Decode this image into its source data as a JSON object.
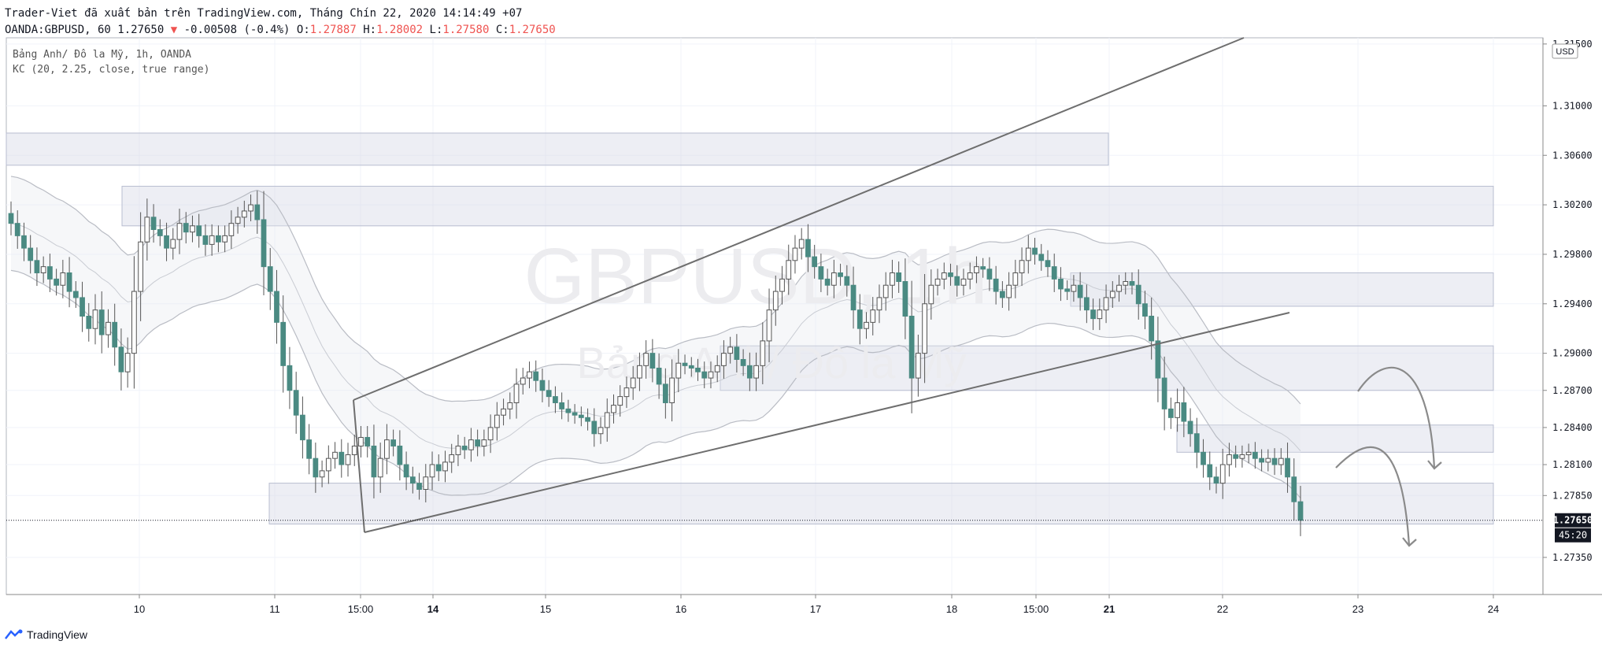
{
  "header": {
    "published_line": "Trader-Viet đã xuất bản trên TradingView.com, Tháng Chín 22, 2020 14:14:49 +07",
    "symbol_line": "OANDA:GBPUSD, 60 1.27650",
    "change": "-0.00508 (-0.4%)",
    "ohlc": {
      "o_label": "O:",
      "o": "1.27887",
      "h_label": "H:",
      "h": "1.28002",
      "l_label": "L:",
      "l": "1.27580",
      "c_label": "C:",
      "c": "1.27650"
    }
  },
  "legend": {
    "line1": "Bảng Anh/ Đô la Mỹ, 1h, OANDA",
    "line2": "KC (20, 2.25, close, true range)"
  },
  "watermark": {
    "symbol": "GBPUSD, 1h",
    "name": "Bảng Anh/ Đô la Mỹ"
  },
  "footer": {
    "brand": "TradingView"
  },
  "colors": {
    "up": "#26a69a",
    "down": "#4a8a82",
    "bull_body": "#ffffff",
    "wick": "#555555",
    "zone": "#d6dae6",
    "line": "#6e6e6e",
    "price_bg": "#131722"
  },
  "chart_data": {
    "type": "candlestick",
    "currency_label": "USD",
    "ylim": [
      1.2705,
      1.3155
    ],
    "y_ticks": [
      "1.31500",
      "1.31000",
      "1.30600",
      "1.30200",
      "1.29800",
      "1.29400",
      "1.29000",
      "1.28700",
      "1.28400",
      "1.28100",
      "1.27850",
      "1.27350"
    ],
    "x_ticks": [
      {
        "label": "10",
        "bold": false
      },
      {
        "label": "11",
        "bold": false
      },
      {
        "label": "15:00",
        "bold": false
      },
      {
        "label": "14",
        "bold": true
      },
      {
        "label": "15",
        "bold": false
      },
      {
        "label": "16",
        "bold": false
      },
      {
        "label": "17",
        "bold": false
      },
      {
        "label": "18",
        "bold": false
      },
      {
        "label": "15:00",
        "bold": false
      },
      {
        "label": "21",
        "bold": true
      },
      {
        "label": "22",
        "bold": false
      },
      {
        "label": "23",
        "bold": false
      },
      {
        "label": "24",
        "bold": false
      }
    ],
    "last_price": "1.27650",
    "countdown": "45:20",
    "candles_close": [
      1.3005,
      1.2995,
      1.2985,
      1.2975,
      1.2965,
      1.297,
      1.296,
      1.2955,
      1.2965,
      1.295,
      1.2945,
      1.293,
      1.292,
      1.2935,
      1.2915,
      1.2925,
      1.2905,
      1.2885,
      1.29,
      1.295,
      1.299,
      1.301,
      1.3,
      1.2995,
      1.2985,
      1.2992,
      1.3005,
      1.2998,
      1.3003,
      1.2995,
      1.2988,
      1.2995,
      1.299,
      1.2995,
      1.3005,
      1.301,
      1.3015,
      1.302,
      1.3008,
      1.297,
      1.295,
      1.2925,
      1.289,
      1.287,
      1.285,
      1.283,
      1.2815,
      1.28,
      1.2805,
      1.2815,
      1.282,
      1.281,
      1.2818,
      1.2825,
      1.2832,
      1.2825,
      1.28,
      1.2815,
      1.283,
      1.2825,
      1.281,
      1.28,
      1.2795,
      1.279,
      1.28,
      1.281,
      1.2805,
      1.2812,
      1.2818,
      1.2825,
      1.2822,
      1.283,
      1.2825,
      1.283,
      1.284,
      1.285,
      1.2855,
      1.286,
      1.2875,
      1.288,
      1.2885,
      1.2878,
      1.287,
      1.2865,
      1.286,
      1.2855,
      1.2852,
      1.285,
      1.2848,
      1.2845,
      1.2835,
      1.284,
      1.2852,
      1.2858,
      1.2865,
      1.2872,
      1.288,
      1.289,
      1.29,
      1.2888,
      1.2875,
      1.286,
      1.288,
      1.2892,
      1.289,
      1.2888,
      1.2885,
      1.288,
      1.2885,
      1.289,
      1.29,
      1.2905,
      1.2895,
      1.289,
      1.288,
      1.289,
      1.291,
      1.2935,
      1.295,
      1.296,
      1.2975,
      1.2985,
      1.2992,
      1.2978,
      1.297,
      1.296,
      1.2955,
      1.2965,
      1.2962,
      1.2955,
      1.2935,
      1.292,
      1.2925,
      1.2935,
      1.2945,
      1.2955,
      1.2965,
      1.2958,
      1.293,
      1.288,
      1.29,
      1.294,
      1.2955,
      1.296,
      1.2965,
      1.2962,
      1.2955,
      1.296,
      1.2965,
      1.297,
      1.2968,
      1.296,
      1.295,
      1.2945,
      1.2955,
      1.2965,
      1.2975,
      1.2985,
      1.298,
      1.2975,
      1.297,
      1.296,
      1.2952,
      1.295,
      1.2955,
      1.2945,
      1.2935,
      1.2928,
      1.2935,
      1.2945,
      1.295,
      1.2955,
      1.2958,
      1.2955,
      1.294,
      1.293,
      1.291,
      1.288,
      1.2855,
      1.2848,
      1.286,
      1.2845,
      1.2835,
      1.282,
      1.281,
      1.28,
      1.2795,
      1.281,
      1.2818,
      1.2815,
      1.2818,
      1.282,
      1.2815,
      1.2812,
      1.2815,
      1.281,
      1.2815,
      1.28,
      1.278,
      1.2765
    ]
  }
}
